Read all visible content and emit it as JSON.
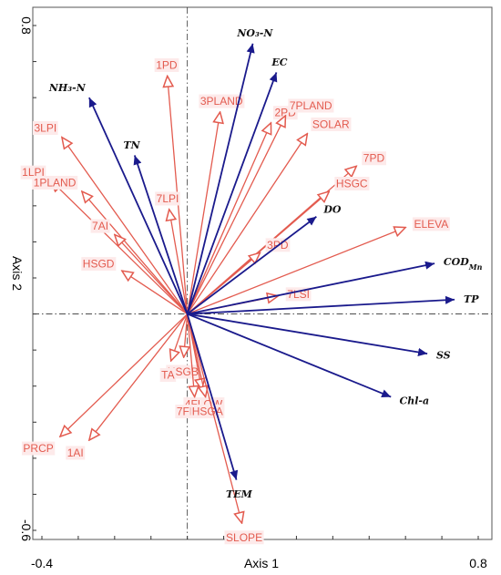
{
  "chart_data": {
    "type": "biplot",
    "xlabel": "Axis 1",
    "ylabel": "Axis 2",
    "xlim": [
      -0.4,
      0.8
    ],
    "ylim": [
      -0.6,
      0.8
    ],
    "x_ticks": [
      {
        "value": -0.4,
        "label": "-0.4"
      },
      {
        "value": 0.8,
        "label": "0.8"
      }
    ],
    "y_ticks": [
      {
        "value": 0.8,
        "label": "0.8"
      },
      {
        "value": -0.6,
        "label": "-0.6"
      }
    ],
    "colors": {
      "environment": "#e35b4f",
      "water_quality": "#1a1a8c",
      "frame": "#555555"
    },
    "series": [
      {
        "name": "environment",
        "vectors": [
          {
            "label": "1PD",
            "x": -0.055,
            "y": 0.66
          },
          {
            "label": "3PLAND",
            "x": 0.09,
            "y": 0.56
          },
          {
            "label": "2PD",
            "x": 0.23,
            "y": 0.53
          },
          {
            "label": "7PLAND",
            "x": 0.27,
            "y": 0.55
          },
          {
            "label": "SOLAR",
            "x": 0.33,
            "y": 0.5
          },
          {
            "label": "3LPI",
            "x": -0.345,
            "y": 0.49
          },
          {
            "label": "1LPI",
            "x": -0.375,
            "y": 0.37
          },
          {
            "label": "1PLAND",
            "x": -0.29,
            "y": 0.34
          },
          {
            "label": "7LPI",
            "x": -0.05,
            "y": 0.29
          },
          {
            "label": "7PD",
            "x": 0.465,
            "y": 0.41
          },
          {
            "label": "HSGC",
            "x": 0.39,
            "y": 0.34
          },
          {
            "label": "7AI",
            "x": -0.2,
            "y": 0.22
          },
          {
            "label": "3PD",
            "x": 0.2,
            "y": 0.17
          },
          {
            "label": "HSGD",
            "x": -0.18,
            "y": 0.12
          },
          {
            "label": "ELEVA",
            "x": 0.6,
            "y": 0.24
          },
          {
            "label": "7LSI",
            "x": 0.25,
            "y": 0.05
          },
          {
            "label": "HSGB",
            "x": -0.01,
            "y": -0.12
          },
          {
            "label": "TA",
            "x": -0.045,
            "y": -0.13
          },
          {
            "label": "4FLOW",
            "x": 0.04,
            "y": -0.21
          },
          {
            "label": "7FLOW",
            "x": 0.02,
            "y": -0.23
          },
          {
            "label": "HSGA",
            "x": 0.05,
            "y": -0.23
          },
          {
            "label": "1AI",
            "x": -0.27,
            "y": -0.35
          },
          {
            "label": "PRCP",
            "x": -0.35,
            "y": -0.34
          },
          {
            "label": "SLOPE",
            "x": 0.15,
            "y": -0.58
          }
        ]
      },
      {
        "name": "water_quality",
        "vectors": [
          {
            "label": "NO₃-N",
            "x": 0.18,
            "y": 0.75
          },
          {
            "label": "EC",
            "x": 0.245,
            "y": 0.67
          },
          {
            "label": "NH₃-N",
            "x": -0.27,
            "y": 0.6
          },
          {
            "label": "TN",
            "x": -0.145,
            "y": 0.44
          },
          {
            "label": "DO",
            "x": 0.355,
            "y": 0.27
          },
          {
            "label": "COD",
            "subscript": "Mn",
            "x": 0.68,
            "y": 0.14
          },
          {
            "label": "TP",
            "x": 0.735,
            "y": 0.04
          },
          {
            "label": "SS",
            "x": 0.66,
            "y": -0.11
          },
          {
            "label": "Chl-a",
            "x": 0.56,
            "y": -0.23
          },
          {
            "label": "TEM",
            "x": 0.135,
            "y": -0.46
          }
        ]
      }
    ]
  }
}
